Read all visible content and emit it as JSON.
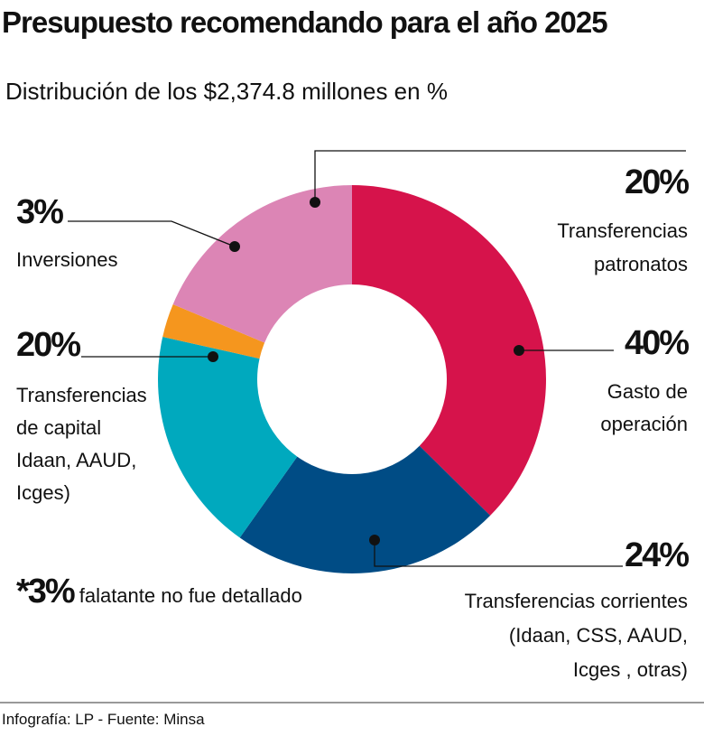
{
  "chart_data": {
    "type": "donut",
    "title": "Presupuesto recomendando para el año 2025",
    "subtitle": "Distribución de los $2,374.8 millones en %",
    "categories": [
      [
        "Gasto de",
        "operación"
      ],
      [
        "Transferencias corrientes",
        "(Idaan, CSS, AAUD,",
        "Icges , otras)"
      ],
      [
        "Transferencias",
        "de capital",
        "Idaan, AAUD,",
        "Icges)"
      ],
      [
        "Inversiones"
      ],
      [
        "Transferencias",
        "patronatos"
      ]
    ],
    "values": [
      40,
      24,
      20,
      3,
      20
    ],
    "value_labels": [
      "40%",
      "24%",
      "20%",
      "3%",
      "20%"
    ],
    "colors": [
      "#d6134b",
      "#004c85",
      "#00a9be",
      "#f5961e",
      "#dc85b5"
    ],
    "note": {
      "mark": "*3%",
      "text": "falatante no fue detallado"
    },
    "source": "Infografía: LP - Fuente: Minsa"
  }
}
